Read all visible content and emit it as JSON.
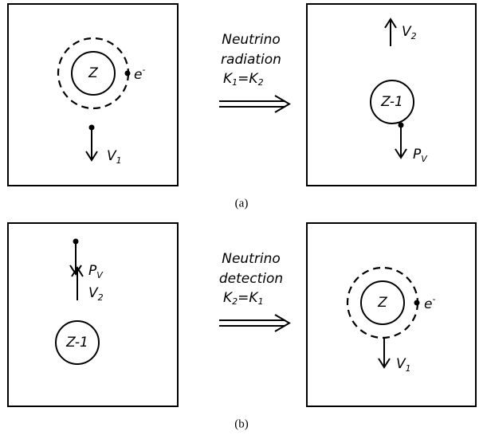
{
  "panel_a": {
    "left": {
      "nucleus": "Z",
      "electron": [
        "e",
        "-"
      ],
      "velocity": [
        "V",
        "1"
      ]
    },
    "middle": {
      "lines": [
        "Neutrino",
        "radiation"
      ],
      "relation": [
        "K",
        "1",
        "=K",
        "2"
      ]
    },
    "right": {
      "velocity": [
        "V",
        "2"
      ],
      "nucleus": "Z-1",
      "momentum": [
        "P",
        "V"
      ]
    },
    "caption": "(a)"
  },
  "panel_b": {
    "left": {
      "momentum": [
        "P",
        "V"
      ],
      "velocity": [
        "V",
        "2"
      ],
      "nucleus": "Z-1"
    },
    "middle": {
      "lines": [
        "Neutrino",
        "detection"
      ],
      "relation": [
        "K",
        "2",
        "=K",
        "1"
      ]
    },
    "right": {
      "nucleus": "Z",
      "electron": [
        "e",
        "-"
      ],
      "velocity": [
        "V",
        "1"
      ]
    },
    "caption": "(b)"
  }
}
